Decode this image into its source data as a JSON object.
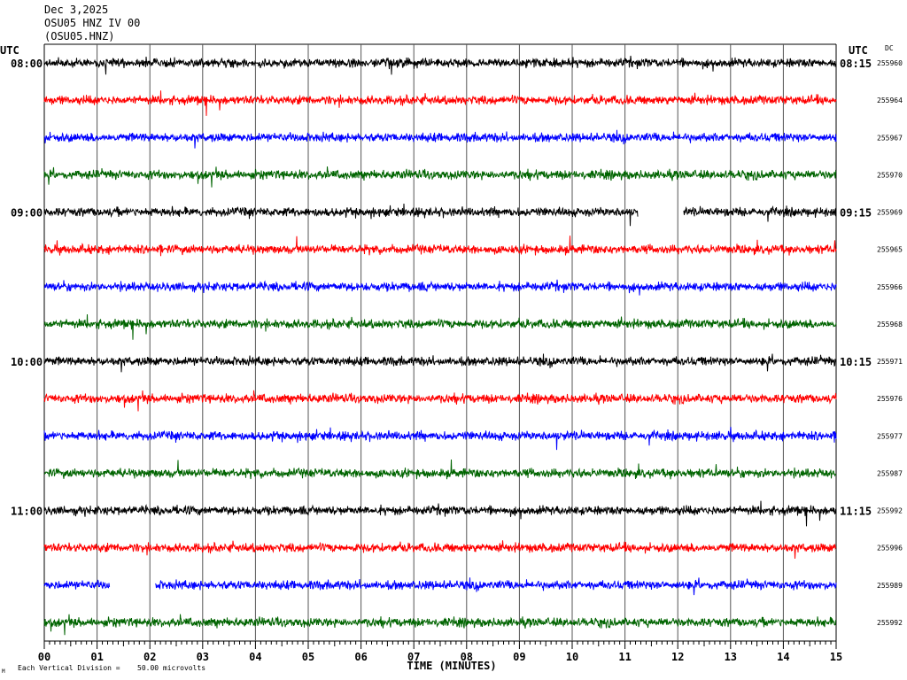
{
  "header": {
    "date": "Dec 3,2025",
    "station": "OSU05 HNZ IV 00",
    "channel": "(OSU05.HNZ)"
  },
  "left_axis_label": "UTC",
  "right_axis_label": "UTC",
  "dc_label": "DC",
  "footer": {
    "scale_note": "Each Vertical Division =",
    "scale_value": "50.00 microvolts",
    "corner_mark": "M"
  },
  "chart_data": {
    "type": "line",
    "title": "",
    "xlabel": "TIME (MINUTES)",
    "ylabel": "",
    "xlim": [
      0,
      15
    ],
    "x_ticks": [
      "00",
      "01",
      "02",
      "03",
      "04",
      "05",
      "06",
      "07",
      "08",
      "09",
      "10",
      "11",
      "12",
      "13",
      "14",
      "15"
    ],
    "left_time_labels": [
      "08:00",
      "09:00",
      "10:00",
      "11:00"
    ],
    "right_time_labels": [
      "08:15",
      "09:15",
      "10:15",
      "11:15"
    ],
    "trace_colors": [
      "#000000",
      "#ff0000",
      "#0000ff",
      "#006400"
    ],
    "grid": true,
    "traces": [
      {
        "dc": "255960",
        "gaps": []
      },
      {
        "dc": "255964",
        "gaps": []
      },
      {
        "dc": "255967",
        "gaps": []
      },
      {
        "dc": "255970",
        "gaps": []
      },
      {
        "dc": "255969",
        "gaps": [
          [
            11.25,
            12.1
          ]
        ]
      },
      {
        "dc": "255965",
        "gaps": []
      },
      {
        "dc": "255966",
        "gaps": []
      },
      {
        "dc": "255968",
        "gaps": []
      },
      {
        "dc": "255971",
        "gaps": []
      },
      {
        "dc": "255976",
        "gaps": []
      },
      {
        "dc": "255977",
        "gaps": []
      },
      {
        "dc": "255987",
        "gaps": []
      },
      {
        "dc": "255992",
        "gaps": []
      },
      {
        "dc": "255996",
        "gaps": []
      },
      {
        "dc": "255989",
        "gaps": [
          [
            1.25,
            2.1
          ]
        ]
      },
      {
        "dc": "255992",
        "gaps": []
      }
    ]
  }
}
